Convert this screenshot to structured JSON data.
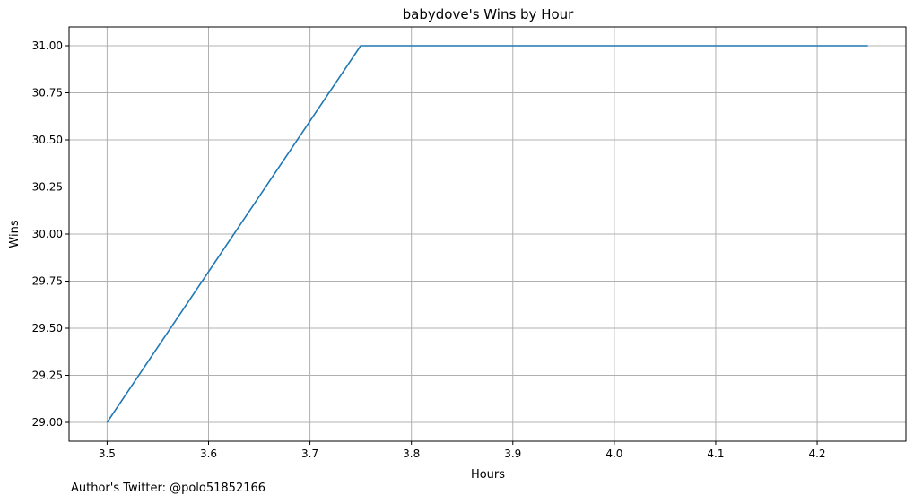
{
  "chart_data": {
    "type": "line",
    "title": "babydove's Wins by Hour",
    "xlabel": "Hours",
    "ylabel": "Wins",
    "xlim": [
      3.4625,
      4.2875
    ],
    "ylim": [
      28.9,
      31.1
    ],
    "xticks": [
      "3.5",
      "3.6",
      "3.7",
      "3.8",
      "3.9",
      "4.0",
      "4.1",
      "4.2"
    ],
    "yticks": [
      "29.00",
      "29.25",
      "29.50",
      "29.75",
      "30.00",
      "30.25",
      "30.50",
      "30.75",
      "31.00"
    ],
    "grid": true,
    "series": [
      {
        "color": "#1f77b4",
        "x": [
          3.5,
          3.75,
          4.0,
          4.25
        ],
        "y": [
          29,
          31,
          31,
          31
        ]
      }
    ]
  },
  "footer": {
    "text": "Author's Twitter: @polo51852166"
  }
}
